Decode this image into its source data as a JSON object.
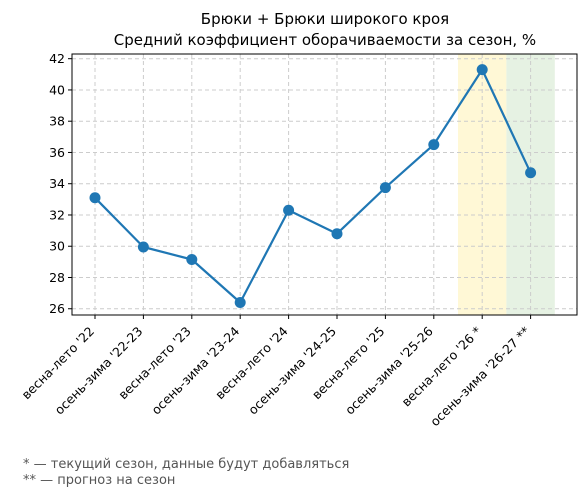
{
  "chart_data": {
    "type": "line",
    "title_line1": "Брюки + Брюки широкого кроя",
    "title_line2": "Средний коэффициент оборачиваемости за сезон, %",
    "xlabel": "",
    "ylabel": "",
    "categories": [
      "весна-лето '22",
      "осень-зима '22-23",
      "весна-лето '23",
      "осень-зима '23-24",
      "весна-лето '24",
      "осень-зима '24-25",
      "весна-лето '25",
      "осень-зима '25-26",
      "весна-лето '26 *",
      "осень-зима '26-27 **"
    ],
    "values": [
      33.1,
      29.95,
      29.15,
      26.4,
      32.3,
      30.8,
      33.75,
      36.5,
      41.3,
      34.7
    ],
    "ylim": [
      25.6,
      42.3
    ],
    "yticks": [
      26,
      28,
      30,
      32,
      34,
      36,
      38,
      40,
      42
    ],
    "grid": true,
    "line_color": "#1f77b4",
    "highlights": [
      {
        "category_index": 8,
        "color": "#fff8d6",
        "meaning": "current season"
      },
      {
        "category_index": 9,
        "color": "#e6f2e3",
        "meaning": "forecast"
      }
    ]
  },
  "footnotes": {
    "line1": "* — текущий сезон, данные будут добавляться",
    "line2": "** — прогноз на сезон"
  }
}
